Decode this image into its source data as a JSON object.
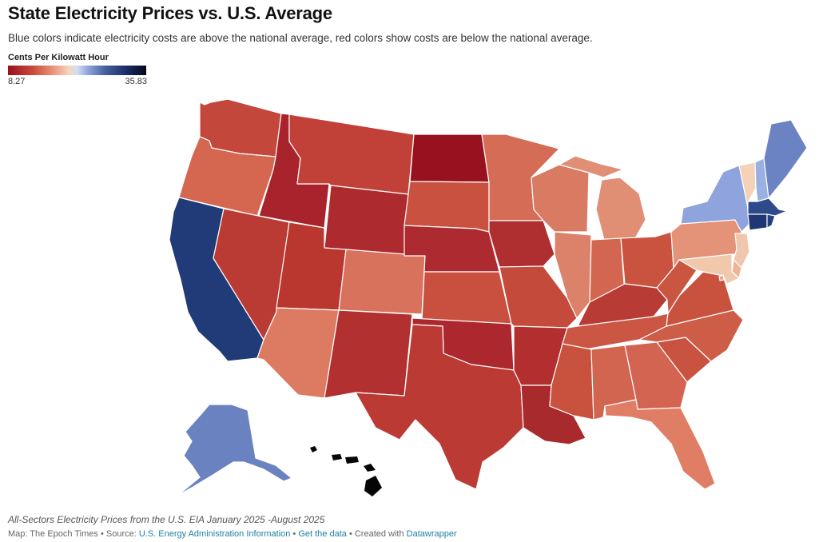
{
  "header": {
    "title": "State Electricity Prices vs. U.S. Average",
    "subtitle": "Blue colors indicate electricity costs are above the national average, red colors show costs are below the national average."
  },
  "legend": {
    "title": "Cents Per Kilowatt Hour",
    "min_label": "8.27",
    "max_label": "35.83",
    "min_value": 8.27,
    "max_value": 35.83,
    "colors": [
      "#9a0f20",
      "#c94b3d",
      "#e6876c",
      "#f6d5bd",
      "#d2ddf2",
      "#8ea4dc",
      "#45619f",
      "#1c2e6b",
      "#050818"
    ]
  },
  "map": {
    "state_colors": {
      "WA": "#c4473b",
      "OR": "#d5664f",
      "CA": "#213b78",
      "NV": "#ba3a34",
      "ID": "#a8232b",
      "MT": "#c14138",
      "WY": "#ad2b2f",
      "UT": "#b9372f",
      "CO": "#d8725c",
      "AZ": "#dc7a62",
      "NM": "#b2302f",
      "ND": "#98111f",
      "SD": "#c9513f",
      "NE": "#ad2a30",
      "KS": "#c9503f",
      "OK": "#ad282e",
      "TX": "#bb3a33",
      "MN": "#d56c56",
      "IA": "#af2e30",
      "MO": "#c44a3b",
      "AR": "#b32f2f",
      "LA": "#a92a2d",
      "WI": "#d97a62",
      "IL": "#dc816a",
      "MS": "#c9523f",
      "AL": "#d26550",
      "MI": "#e08e74",
      "IN": "#d26650",
      "KY": "#b93b35",
      "TN": "#cb5643",
      "OH": "#c9533f",
      "GA": "#d26451",
      "FL": "#e07d65",
      "SC": "#c95340",
      "NC": "#ce5d48",
      "VA": "#c9523f",
      "WV": "#ca5642",
      "PA": "#e49379",
      "NY": "#8fa3dc",
      "VT": "#f3d2b8",
      "NH": "#9bb0e2",
      "ME": "#6b83c2",
      "MA": "#2e4a8a",
      "RI": "#24407f",
      "CT": "#1f3773",
      "NJ": "#f0c7aa",
      "DE": "#ecb697",
      "MD": "#f0c9ad",
      "DC": "#e6a288",
      "AK": "#6b82c0",
      "HI": "#050505"
    }
  },
  "footnote": "All-Sectors Electricity Prices from the U.S. EIA January 2025 -August 2025",
  "footer": {
    "map_credit": "Map: The Epoch Times",
    "sep1": " • Source: ",
    "source": "U.S. Energy Administration Information",
    "sep2": " • ",
    "get_data": "Get the data",
    "sep3": " • Created with ",
    "tool": "Datawrapper"
  }
}
